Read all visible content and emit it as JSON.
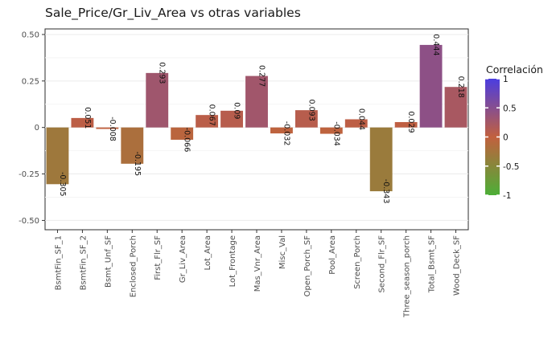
{
  "chart_data": {
    "type": "bar",
    "title": "Sale_Price/Gr_Liv_Area vs otras variables",
    "xlabel": "",
    "ylabel": "",
    "categories": [
      "BsmtFin_SF_1",
      "BsmtFin_SF_2",
      "Bsmt_Unf_SF",
      "Enclosed_Porch",
      "First_Flr_SF",
      "Gr_Liv_Area",
      "Lot_Area",
      "Lot_Frontage",
      "Mas_Vnr_Area",
      "Misc_Val",
      "Open_Porch_SF",
      "Pool_Area",
      "Screen_Porch",
      "Second_Flr_SF",
      "Three_season_porch",
      "Total_Bsmt_SF",
      "Wood_Deck_SF"
    ],
    "values": [
      -0.305,
      0.051,
      -0.008,
      -0.195,
      0.293,
      -0.066,
      0.067,
      0.09,
      0.277,
      -0.032,
      0.093,
      -0.034,
      0.044,
      -0.343,
      0.029,
      0.444,
      0.218
    ],
    "labels": [
      "-0.305",
      "0.051",
      "-0.008",
      "-0.195",
      "0.293",
      "-0.066",
      "0.067",
      "0.09",
      "0.277",
      "-0.032",
      "0.093",
      "-0.034",
      "0.044",
      "-0.343",
      "0.029",
      "0.444",
      "0.218"
    ],
    "ylim": [
      -0.55,
      0.53
    ],
    "yticks": [
      -0.5,
      -0.25,
      0,
      0.25,
      0.5
    ],
    "ytick_labels": [
      "-0.50",
      "-0.25",
      "0",
      "0.25",
      "0.50"
    ],
    "grid": true,
    "legend": {
      "title": "Correlación",
      "placement": "right",
      "range": [
        -1,
        1
      ],
      "ticks": [
        1,
        0.5,
        0,
        -0.5,
        -1
      ],
      "tick_labels": [
        "1",
        "0.5",
        "0",
        "-0.5",
        "-1"
      ],
      "colors": {
        "low": "#4caf37",
        "mid": "#c2603e",
        "high": "#4b3de0"
      }
    }
  }
}
